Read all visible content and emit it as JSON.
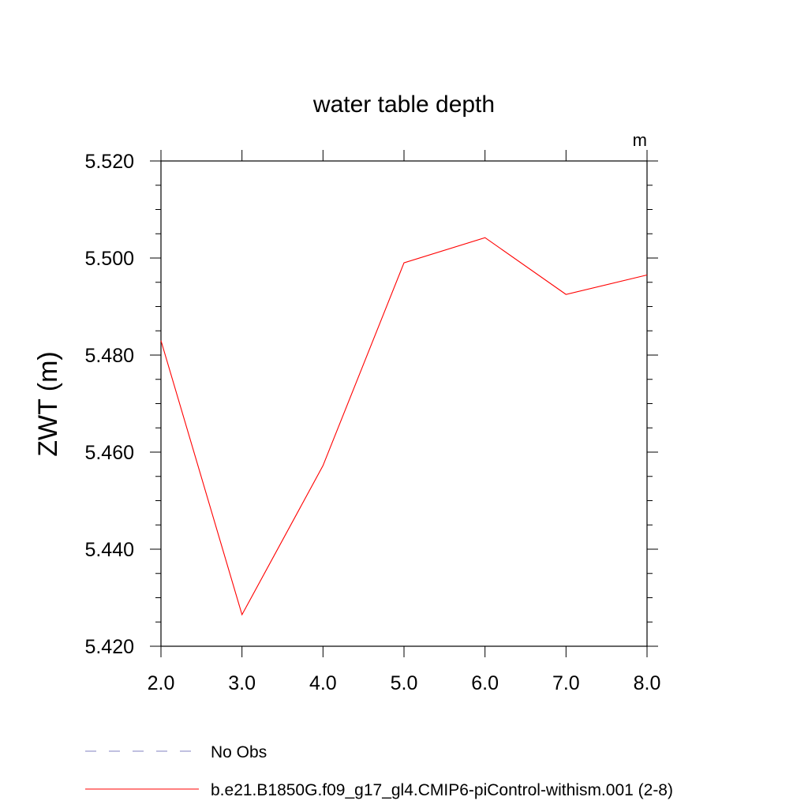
{
  "chart_data": {
    "type": "line",
    "title": "water table depth",
    "units": "m",
    "ylabel": "ZWT  (m)",
    "xlabel": "",
    "x": [
      2.0,
      3.0,
      4.0,
      5.0,
      6.0,
      7.0,
      8.0
    ],
    "xlim": [
      2.0,
      8.0
    ],
    "ylim": [
      5.42,
      5.52
    ],
    "x_tick_values": [
      2.0,
      3.0,
      4.0,
      5.0,
      6.0,
      7.0,
      8.0
    ],
    "x_tick_labels": [
      "2.0",
      "3.0",
      "4.0",
      "5.0",
      "6.0",
      "7.0",
      "8.0"
    ],
    "y_tick_values": [
      5.42,
      5.44,
      5.46,
      5.48,
      5.5,
      5.52
    ],
    "y_tick_labels": [
      "5.420",
      "5.440",
      "5.460",
      "5.480",
      "5.500",
      "5.520"
    ],
    "grid": false,
    "legend_position": "bottom",
    "series": [
      {
        "name": "b.e21.B1850G.f09_g17_gl4.CMIP6-piControl-withism.001 (2-8)",
        "color": "#ff0000",
        "line_style": "solid",
        "values": [
          5.483,
          5.4265,
          5.4572,
          5.499,
          5.5042,
          5.4925,
          5.4965
        ]
      }
    ],
    "legend": [
      {
        "label": "No Obs",
        "color": "#8080c0",
        "line_style": "dashed"
      },
      {
        "label": "b.e21.B1850G.f09_g17_gl4.CMIP6-piControl-withism.001 (2-8)",
        "color": "#ff0000",
        "line_style": "solid"
      }
    ]
  }
}
